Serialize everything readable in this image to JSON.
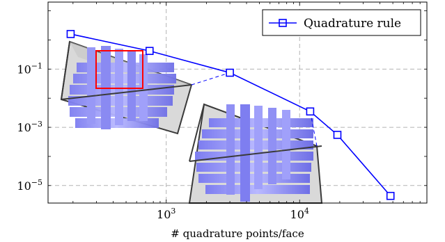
{
  "chart_data": {
    "type": "line",
    "title": "",
    "xlabel": "# quadrature points/face",
    "ylabel": "",
    "x_scale": "log",
    "y_scale": "log",
    "xlim": [
      130,
      90000
    ],
    "ylim": [
      2.5e-06,
      20
    ],
    "grid": true,
    "legend_position": "top-right",
    "x_ticks": [
      {
        "value": 1000,
        "base": "10",
        "exp": "3"
      },
      {
        "value": 10000,
        "base": "10",
        "exp": "4"
      }
    ],
    "y_ticks": [
      {
        "value": 0.1,
        "base": "10",
        "exp": "−1"
      },
      {
        "value": 0.001,
        "base": "10",
        "exp": "−3"
      },
      {
        "value": 1e-05,
        "base": "10",
        "exp": "−5"
      }
    ],
    "series": [
      {
        "name": "Quadrature rule",
        "color": "#0000ff",
        "marker": "square",
        "x": [
          192,
          750,
          3000,
          12000,
          19200,
          48000
        ],
        "y": [
          1.6,
          0.42,
          0.075,
          0.0035,
          0.00055,
          4.4e-06
        ]
      }
    ],
    "annotations": {
      "inset_left": {
        "description_icon": "zoomed-mesh-render",
        "connects_to_x": 3000,
        "connects_to_y": 0.075
      },
      "inset_right": {
        "description_icon": "zoomed-mesh-render",
        "connects_to_x": 12000,
        "connects_to_y": 0.0035
      }
    }
  }
}
